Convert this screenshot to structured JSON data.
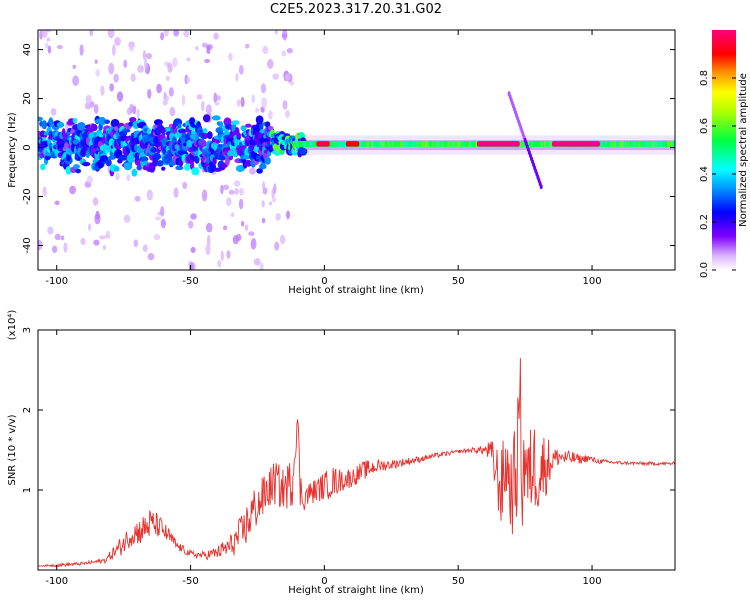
{
  "page": {
    "title": "C2E5.2023.317.20.31.G02"
  },
  "colors": {
    "snr_line": "#e8322e",
    "spectrum_cmap": "rainbow (0 → white/violet, 1 → magenta-red)"
  },
  "chart_data": [
    {
      "type": "heatmap",
      "title": "C2E5.2023.317.20.31.G02",
      "xlabel": "Height of straight line (km)",
      "ylabel": "Frequency (Hz)",
      "xlim": [
        -107,
        131
      ],
      "ylim": [
        -50,
        48
      ],
      "xticks": [
        -100,
        -50,
        0,
        50,
        100
      ],
      "yticks": [
        -40,
        -20,
        0,
        20,
        40
      ],
      "colorbar": {
        "label": "Normalized spectral amplitude",
        "range": [
          0.0,
          1.0
        ],
        "ticks": [
          0.0,
          0.2,
          0.4,
          0.6,
          0.8
        ]
      },
      "ridge": [
        {
          "x0": -107,
          "x1": -20,
          "freq": 1,
          "spread": 8,
          "amp": 0.35
        },
        {
          "x0": -20,
          "x1": 10,
          "freq": 1.5,
          "spread": 3,
          "amp": 0.55
        },
        {
          "x0": 10,
          "x1": 131,
          "freq": 1.5,
          "spread": 1.5,
          "amp": 0.6
        }
      ],
      "peaks": [
        {
          "x0": -3,
          "x1": 2,
          "amp": 0.95
        },
        {
          "x0": 8,
          "x1": 13,
          "amp": 0.9
        },
        {
          "x0": 57,
          "x1": 73,
          "amp": 1.0
        },
        {
          "x0": 85,
          "x1": 103,
          "amp": 1.0
        }
      ]
    },
    {
      "type": "line",
      "xlabel": "Height of straight line (km)",
      "ylabel": "SNR (10 * v/v)",
      "yexponent": "(x10⁴)",
      "xlim": [
        -107,
        131
      ],
      "ylim": [
        0,
        3
      ],
      "xticks": [
        -100,
        -50,
        0,
        50,
        100
      ],
      "yticks": [
        1,
        2,
        3
      ],
      "series": [
        {
          "x": [
            -107,
            -100,
            -90,
            -82,
            -76,
            -72,
            -68,
            -65,
            -62,
            -58,
            -55,
            -50,
            -45,
            -40,
            -35,
            -30,
            -27,
            -24,
            -22,
            -20,
            -18,
            -16,
            -14,
            -12,
            -11,
            -10,
            -9,
            -8,
            -6,
            -3,
            0,
            3,
            6,
            10,
            15,
            20,
            25,
            30,
            35,
            40,
            45,
            50,
            55,
            60,
            62,
            64,
            66,
            68,
            70,
            72,
            73,
            74,
            75,
            76,
            78,
            80,
            82,
            84,
            86,
            88,
            90,
            93,
            96,
            98,
            100,
            102,
            110,
            120,
            131
          ],
          "y": [
            0.05,
            0.06,
            0.08,
            0.12,
            0.3,
            0.45,
            0.5,
            0.58,
            0.55,
            0.42,
            0.3,
            0.2,
            0.18,
            0.22,
            0.3,
            0.5,
            0.72,
            0.85,
            0.95,
            1.05,
            1.1,
            1.0,
            1.05,
            1.1,
            1.5,
            1.9,
            1.0,
            0.9,
            0.95,
            1.0,
            1.05,
            1.1,
            1.12,
            1.15,
            1.25,
            1.3,
            1.32,
            1.35,
            1.38,
            1.42,
            1.45,
            1.48,
            1.5,
            1.5,
            1.48,
            1.25,
            1.0,
            1.35,
            0.95,
            1.3,
            2.4,
            1.0,
            1.5,
            1.1,
            1.35,
            1.2,
            1.3,
            1.35,
            1.4,
            1.42,
            1.4,
            1.4,
            1.38,
            1.4,
            1.38,
            1.36,
            1.34,
            1.33,
            1.33
          ],
          "noise": [
            0.0,
            0.02,
            0.02,
            0.03,
            0.12,
            0.15,
            0.18,
            0.2,
            0.15,
            0.1,
            0.06,
            0.04,
            0.05,
            0.08,
            0.15,
            0.25,
            0.3,
            0.25,
            0.3,
            0.25,
            0.3,
            0.25,
            0.3,
            0.3,
            0.2,
            0.15,
            0.25,
            0.18,
            0.15,
            0.15,
            0.18,
            0.2,
            0.15,
            0.12,
            0.12,
            0.08,
            0.06,
            0.05,
            0.04,
            0.03,
            0.03,
            0.02,
            0.03,
            0.06,
            0.15,
            0.35,
            0.5,
            0.5,
            0.55,
            0.7,
            0.6,
            0.7,
            0.6,
            0.55,
            0.6,
            0.5,
            0.45,
            0.3,
            0.12,
            0.12,
            0.1,
            0.08,
            0.05,
            0.05,
            0.04,
            0.03,
            0.02,
            0.02,
            0.02
          ]
        }
      ]
    }
  ]
}
